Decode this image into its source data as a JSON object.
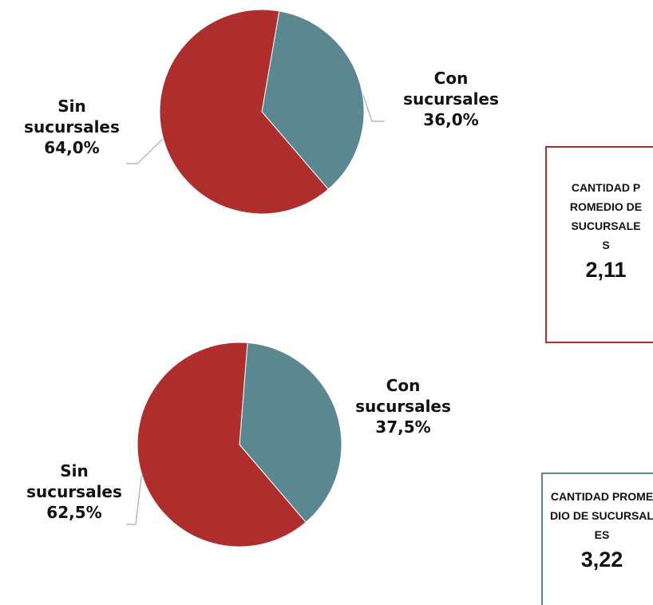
{
  "chart_data": [
    {
      "type": "pie",
      "categories": [
        "Con sucursales",
        "Sin sucursales"
      ],
      "values": [
        36,
        64
      ],
      "value_labels": [
        "36,0%",
        "64,0%"
      ],
      "colors": [
        "#5b8790",
        "#ae2d2d"
      ],
      "annotations": [
        "CANTIDAD PROMEDIO DE SUCURSALES",
        "2,11"
      ],
      "annotation_color": "#ae2d2d"
    },
    {
      "type": "pie",
      "categories": [
        "Con sucursales",
        "Sin sucursales"
      ],
      "values": [
        37.5,
        62.5
      ],
      "value_labels": [
        "37,5%",
        "62,5%"
      ],
      "colors": [
        "#5b8790",
        "#ae2d2d"
      ],
      "annotations": [
        "CANTIDAD PROMEDIO DE SUCURSALES",
        "3,22"
      ],
      "annotation_color": "#5b8790"
    }
  ]
}
